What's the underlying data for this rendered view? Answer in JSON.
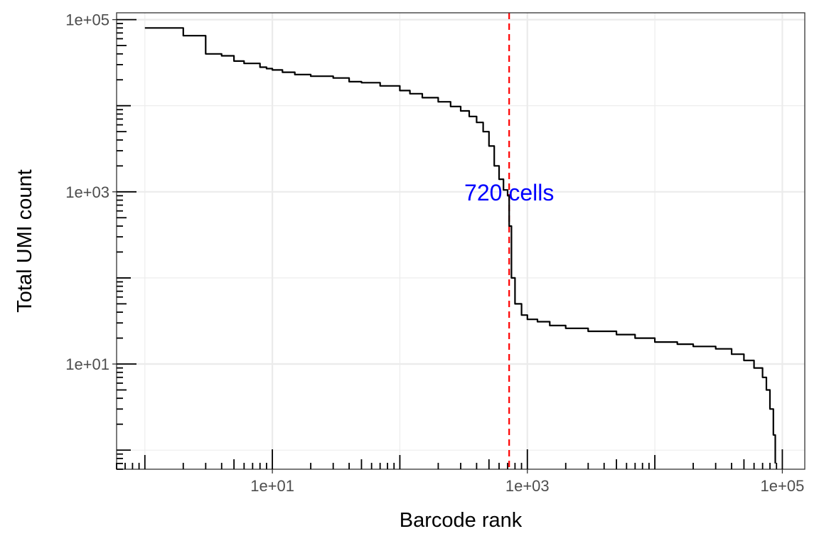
{
  "chart_data": {
    "type": "line",
    "xlabel": "Barcode rank",
    "ylabel": "Total UMI count",
    "x_scale": "log10",
    "y_scale": "log10",
    "xlim": [
      0.6,
      150000
    ],
    "ylim": [
      0.6,
      120000
    ],
    "grid": true,
    "legend": "none",
    "x_ticks": [
      {
        "value": 10,
        "label": "1e+01"
      },
      {
        "value": 1000,
        "label": "1e+03"
      },
      {
        "value": 100000,
        "label": "1e+05"
      }
    ],
    "y_ticks": [
      {
        "value": 10,
        "label": "1e+01"
      },
      {
        "value": 1000,
        "label": "1e+03"
      },
      {
        "value": 100000,
        "label": "1e+05"
      }
    ],
    "series": [
      {
        "color": "#000000",
        "x": [
          1,
          2,
          3,
          4,
          5,
          6,
          7,
          8,
          9,
          10,
          12,
          15,
          20,
          30,
          40,
          50,
          70,
          100,
          120,
          150,
          200,
          250,
          300,
          350,
          400,
          450,
          500,
          550,
          600,
          650,
          700,
          720,
          750,
          800,
          900,
          1000,
          1200,
          1500,
          2000,
          3000,
          5000,
          7000,
          10000,
          15000,
          20000,
          30000,
          40000,
          50000,
          60000,
          70000,
          75000,
          80000,
          85000,
          88000
        ],
        "y": [
          80000,
          65000,
          40000,
          38000,
          33000,
          31000,
          31000,
          28000,
          27000,
          26000,
          24500,
          23000,
          22000,
          21000,
          19000,
          18500,
          17000,
          15000,
          13800,
          12400,
          11100,
          9800,
          8700,
          7500,
          6400,
          5000,
          3400,
          2000,
          1400,
          1050,
          900,
          400,
          100,
          50,
          37,
          33,
          31,
          28,
          26,
          24,
          22,
          20,
          18,
          17,
          16,
          15,
          13,
          11,
          9,
          7,
          5,
          3,
          1.5,
          0.7
        ]
      }
    ],
    "vline": {
      "x": 720,
      "color": "#ff0000",
      "style": "dashed"
    },
    "annotations": [
      {
        "text": "720 cells",
        "x": 720,
        "y": 1000,
        "color": "#0000ff"
      }
    ]
  }
}
